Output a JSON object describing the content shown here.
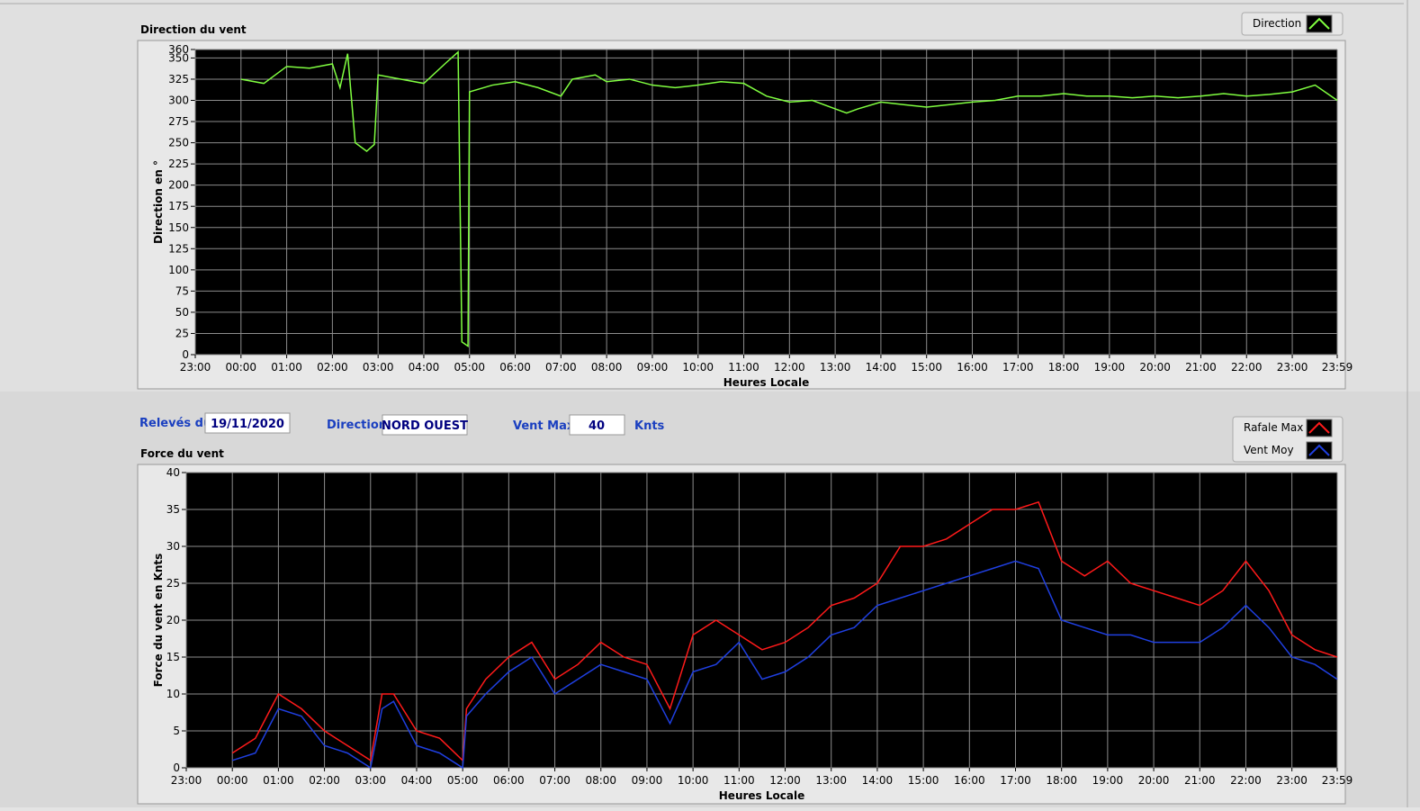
{
  "chart_data": [
    {
      "type": "line",
      "title": "Direction du vent",
      "y_label": "Direction en °",
      "x_label": "Heures Locale",
      "xlim": [
        0,
        1499
      ],
      "xticks": [
        {
          "value": 0,
          "label": "23:00"
        },
        {
          "value": 60,
          "label": "00:00"
        },
        {
          "value": 120,
          "label": "01:00"
        },
        {
          "value": 180,
          "label": "02:00"
        },
        {
          "value": 240,
          "label": "03:00"
        },
        {
          "value": 300,
          "label": "04:00"
        },
        {
          "value": 360,
          "label": "05:00"
        },
        {
          "value": 420,
          "label": "06:00"
        },
        {
          "value": 480,
          "label": "07:00"
        },
        {
          "value": 540,
          "label": "08:00"
        },
        {
          "value": 600,
          "label": "09:00"
        },
        {
          "value": 660,
          "label": "10:00"
        },
        {
          "value": 720,
          "label": "11:00"
        },
        {
          "value": 780,
          "label": "12:00"
        },
        {
          "value": 840,
          "label": "13:00"
        },
        {
          "value": 900,
          "label": "14:00"
        },
        {
          "value": 960,
          "label": "15:00"
        },
        {
          "value": 1020,
          "label": "16:00"
        },
        {
          "value": 1080,
          "label": "17:00"
        },
        {
          "value": 1140,
          "label": "18:00"
        },
        {
          "value": 1200,
          "label": "19:00"
        },
        {
          "value": 1260,
          "label": "20:00"
        },
        {
          "value": 1320,
          "label": "21:00"
        },
        {
          "value": 1380,
          "label": "22:00"
        },
        {
          "value": 1440,
          "label": "23:00"
        },
        {
          "value": 1499,
          "label": "23:59"
        }
      ],
      "ylim": [
        0,
        360
      ],
      "yticks": [
        0,
        25,
        50,
        75,
        100,
        125,
        150,
        175,
        200,
        225,
        250,
        275,
        300,
        325,
        350,
        360
      ],
      "grid": true,
      "series": [
        {
          "name": "Direction",
          "color": "#80ff40",
          "x": [
            60,
            90,
            120,
            150,
            180,
            190,
            200,
            210,
            225,
            235,
            240,
            270,
            300,
            330,
            345,
            350,
            358,
            360,
            390,
            420,
            450,
            480,
            495,
            525,
            540,
            570,
            600,
            630,
            660,
            690,
            720,
            750,
            780,
            810,
            840,
            855,
            870,
            900,
            930,
            960,
            990,
            1020,
            1050,
            1080,
            1110,
            1140,
            1170,
            1200,
            1230,
            1260,
            1290,
            1320,
            1350,
            1380,
            1410,
            1440,
            1470,
            1499
          ],
          "values": [
            325,
            320,
            340,
            338,
            343,
            315,
            355,
            250,
            240,
            248,
            330,
            325,
            320,
            345,
            357,
            15,
            10,
            310,
            318,
            322,
            315,
            305,
            325,
            330,
            322,
            325,
            318,
            315,
            318,
            322,
            320,
            305,
            298,
            300,
            290,
            285,
            290,
            298,
            295,
            292,
            295,
            298,
            300,
            305,
            305,
            308,
            305,
            305,
            303,
            305,
            303,
            305,
            308,
            305,
            307,
            310,
            318,
            300
          ]
        }
      ]
    },
    {
      "type": "line",
      "title": "Force du vent",
      "y_label": "Force du vent en Knts",
      "x_label": "Heures Locale",
      "xlim": [
        0,
        1499
      ],
      "xticks": [
        {
          "value": 0,
          "label": "23:00"
        },
        {
          "value": 60,
          "label": "00:00"
        },
        {
          "value": 120,
          "label": "01:00"
        },
        {
          "value": 180,
          "label": "02:00"
        },
        {
          "value": 240,
          "label": "03:00"
        },
        {
          "value": 300,
          "label": "04:00"
        },
        {
          "value": 360,
          "label": "05:00"
        },
        {
          "value": 420,
          "label": "06:00"
        },
        {
          "value": 480,
          "label": "07:00"
        },
        {
          "value": 540,
          "label": "08:00"
        },
        {
          "value": 600,
          "label": "09:00"
        },
        {
          "value": 660,
          "label": "10:00"
        },
        {
          "value": 720,
          "label": "11:00"
        },
        {
          "value": 780,
          "label": "12:00"
        },
        {
          "value": 840,
          "label": "13:00"
        },
        {
          "value": 900,
          "label": "14:00"
        },
        {
          "value": 960,
          "label": "15:00"
        },
        {
          "value": 1020,
          "label": "16:00"
        },
        {
          "value": 1080,
          "label": "17:00"
        },
        {
          "value": 1140,
          "label": "18:00"
        },
        {
          "value": 1200,
          "label": "19:00"
        },
        {
          "value": 1260,
          "label": "20:00"
        },
        {
          "value": 1320,
          "label": "21:00"
        },
        {
          "value": 1380,
          "label": "22:00"
        },
        {
          "value": 1440,
          "label": "23:00"
        },
        {
          "value": 1499,
          "label": "23:59"
        }
      ],
      "ylim": [
        0,
        40
      ],
      "yticks": [
        0,
        5,
        10,
        15,
        20,
        25,
        30,
        35,
        40
      ],
      "grid": true,
      "x": [
        60,
        90,
        120,
        150,
        180,
        210,
        240,
        255,
        270,
        300,
        330,
        360,
        365,
        390,
        420,
        450,
        480,
        510,
        540,
        570,
        600,
        630,
        660,
        690,
        720,
        750,
        780,
        810,
        840,
        870,
        900,
        930,
        960,
        990,
        1020,
        1050,
        1080,
        1110,
        1140,
        1170,
        1200,
        1230,
        1260,
        1290,
        1320,
        1350,
        1380,
        1410,
        1440,
        1470,
        1499
      ],
      "series": [
        {
          "name": "Rafale Max",
          "color": "#ff1a1a",
          "values": [
            2,
            4,
            10,
            8,
            5,
            3,
            1,
            10,
            10,
            5,
            4,
            1,
            8,
            12,
            15,
            17,
            12,
            14,
            17,
            15,
            14,
            8,
            18,
            20,
            18,
            16,
            17,
            19,
            22,
            23,
            25,
            30,
            30,
            31,
            33,
            35,
            35,
            36,
            28,
            26,
            28,
            25,
            24,
            23,
            22,
            24,
            28,
            24,
            18,
            16,
            15
          ]
        },
        {
          "name": "Vent Moy",
          "color": "#1f3fe0",
          "values": [
            1,
            2,
            8,
            7,
            3,
            2,
            0,
            8,
            9,
            3,
            2,
            0,
            7,
            10,
            13,
            15,
            10,
            12,
            14,
            13,
            12,
            6,
            13,
            14,
            17,
            12,
            13,
            15,
            18,
            19,
            22,
            23,
            24,
            25,
            26,
            27,
            28,
            27,
            20,
            19,
            18,
            18,
            17,
            17,
            17,
            19,
            22,
            19,
            15,
            14,
            12
          ]
        }
      ]
    }
  ],
  "controls": {
    "date_label": "Relevés du",
    "date": "19/11/2020",
    "direction_label": "Direction",
    "direction": "NORD OUEST",
    "vent_max_label": "Vent Max",
    "vent_max": "40",
    "unit": "Knts"
  }
}
